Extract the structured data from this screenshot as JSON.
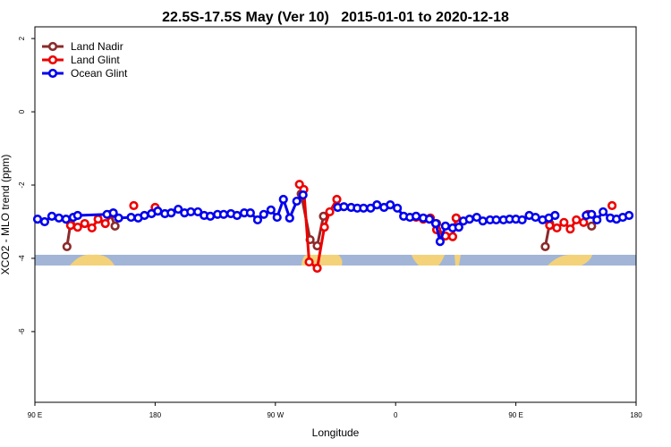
{
  "chart_data": {
    "type": "line",
    "title": "22.5S-17.5S May (Ver 10)   2015-01-01 to 2020-12-18",
    "x_label": "Longitude",
    "y_label": "XCO2 - MLO trend (ppm)",
    "xlim": [
      90,
      540
    ],
    "ylim": [
      -7.93,
      2.32
    ],
    "xticks": [
      {
        "value": 90,
        "label": "90 E"
      },
      {
        "value": 180,
        "label": "180"
      },
      {
        "value": 270,
        "label": "90 W"
      },
      {
        "value": 360,
        "label": "0"
      },
      {
        "value": 450,
        "label": "90 E"
      },
      {
        "value": 540,
        "label": "180"
      }
    ],
    "yticks": [
      -6,
      -4,
      -2,
      0,
      2
    ],
    "legend": "top-left",
    "series": [
      {
        "name": "Land Nadir",
        "color": "#8b2b2b",
        "x": [
          114.0,
          116.7,
          null,
          146.7,
          150.0,
          null,
          289.3,
          296.0,
          301.3,
          306.0,
          null,
          390.7,
          395.3,
          null,
          405.3,
          null,
          472.0,
          475.3,
          null,
          506.7
        ],
        "values": [
          -3.68,
          -3.05,
          null,
          -2.8,
          -3.12,
          null,
          -2.24,
          -3.49,
          -3.66,
          -2.85,
          null,
          -3.05,
          -3.39,
          null,
          -2.9,
          null,
          -3.68,
          -3.05,
          null,
          -3.12
        ]
      },
      {
        "name": "Land Glint",
        "color": "#ee0000",
        "x": [
          116.7,
          122.0,
          127.3,
          132.7,
          137.3,
          142.7,
          148.0,
          null,
          164.0,
          null,
          180.0,
          null,
          288.0,
          291.3,
          295.3,
          301.3,
          306.7,
          310.7,
          316.0,
          null,
          375.3,
          380.7,
          386.0,
          390.7,
          397.3,
          402.7,
          405.3,
          null,
          475.3,
          480.7,
          486.0,
          490.7,
          495.3,
          500.7,
          504.0,
          null,
          522.0
        ],
        "values": [
          -3.1,
          -3.15,
          -3.05,
          -3.17,
          -2.93,
          -3.05,
          -2.78,
          null,
          -2.56,
          null,
          -2.61,
          null,
          -1.98,
          -2.12,
          -4.1,
          -4.27,
          -3.15,
          -2.73,
          -2.39,
          null,
          -2.88,
          -2.93,
          -2.9,
          -3.22,
          -3.39,
          -3.41,
          -2.9,
          null,
          -3.1,
          -3.17,
          -3.02,
          -3.2,
          -2.95,
          -3.02,
          -2.8,
          null,
          -2.56
        ]
      },
      {
        "name": "Ocean Glint",
        "color": "#0000ee",
        "x": [
          92.0,
          97.3,
          102.7,
          108.0,
          113.3,
          118.7,
          122.0,
          144.0,
          148.7,
          152.7,
          162.0,
          167.3,
          172.0,
          177.3,
          182.0,
          187.3,
          192.0,
          197.3,
          202.0,
          206.7,
          212.0,
          216.7,
          221.3,
          226.7,
          231.3,
          236.7,
          241.3,
          246.7,
          251.3,
          256.7,
          261.3,
          266.7,
          271.3,
          276.0,
          280.7,
          286.0,
          290.7,
          null,
          316.7,
          321.3,
          326.7,
          331.3,
          336.0,
          341.3,
          346.0,
          351.3,
          356.0,
          361.3,
          366.0,
          370.7,
          375.3,
          380.7,
          385.3,
          390.0,
          393.3,
          397.3,
          402.7,
          407.3,
          410.7,
          415.3,
          420.7,
          425.3,
          430.7,
          435.3,
          440.7,
          445.3,
          450.0,
          454.7,
          460.0,
          464.7,
          470.0,
          474.7,
          479.3,
          null,
          502.7,
          506.7,
          510.7,
          515.3,
          520.7,
          525.3,
          530.0,
          534.7
        ],
        "values": [
          -2.93,
          -3.0,
          -2.85,
          -2.9,
          -2.93,
          -2.88,
          -2.83,
          -2.8,
          -2.76,
          -2.9,
          -2.88,
          -2.9,
          -2.83,
          -2.78,
          -2.71,
          -2.78,
          -2.76,
          -2.66,
          -2.76,
          -2.73,
          -2.73,
          -2.83,
          -2.85,
          -2.8,
          -2.8,
          -2.78,
          -2.83,
          -2.76,
          -2.76,
          -2.95,
          -2.8,
          -2.68,
          -2.88,
          -2.39,
          -2.9,
          -2.44,
          -2.27,
          null,
          -2.61,
          -2.59,
          -2.61,
          -2.63,
          -2.63,
          -2.63,
          -2.54,
          -2.61,
          -2.54,
          -2.63,
          -2.85,
          -2.88,
          -2.85,
          -2.9,
          -2.93,
          -3.05,
          -3.54,
          -3.12,
          -3.17,
          -3.15,
          -2.98,
          -2.93,
          -2.88,
          -2.98,
          -2.95,
          -2.95,
          -2.95,
          -2.93,
          -2.93,
          -2.95,
          -2.83,
          -2.88,
          -2.95,
          -2.9,
          -2.83,
          null,
          -2.83,
          -2.8,
          -2.95,
          -2.73,
          -2.9,
          -2.93,
          -2.88,
          -2.83
        ]
      }
    ]
  }
}
